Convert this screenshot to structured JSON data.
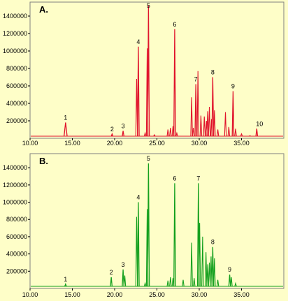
{
  "chart_data": [
    {
      "type": "line",
      "panel": "A.",
      "color": "#e0142c",
      "xlim": [
        10,
        40
      ],
      "ylim": [
        0,
        1520000
      ],
      "x_ticks": [
        "10.00",
        "15.00",
        "20.00",
        "25.00",
        "30.00",
        "35.00"
      ],
      "y_ticks": [
        "200000",
        "400000",
        "600000",
        "800000",
        "1000000",
        "1200000",
        "1400000"
      ],
      "peaks": [
        {
          "x": 14.2,
          "y": 180000,
          "label": "1"
        },
        {
          "x": 19.7,
          "y": 50000,
          "label": "2"
        },
        {
          "x": 21.0,
          "y": 85000,
          "label": "3"
        },
        {
          "x": 22.8,
          "y": 1050000,
          "label": "4"
        },
        {
          "x": 24.0,
          "y": 1520000,
          "label": "5"
        },
        {
          "x": 27.1,
          "y": 1250000,
          "label": "6"
        },
        {
          "x": 29.6,
          "y": 620000,
          "label": "7"
        },
        {
          "x": 31.6,
          "y": 700000,
          "label": "8"
        },
        {
          "x": 34.0,
          "y": 540000,
          "label": "9"
        },
        {
          "x": 36.8,
          "y": 110000,
          "label": "10"
        }
      ],
      "minor_peaks": [
        {
          "x": 22.6,
          "y": 680000
        },
        {
          "x": 23.6,
          "y": 60000
        },
        {
          "x": 23.85,
          "y": 1030000
        },
        {
          "x": 24.7,
          "y": 40000
        },
        {
          "x": 26.3,
          "y": 100000
        },
        {
          "x": 26.6,
          "y": 120000
        },
        {
          "x": 26.9,
          "y": 140000
        },
        {
          "x": 27.35,
          "y": 60000
        },
        {
          "x": 29.1,
          "y": 470000
        },
        {
          "x": 29.3,
          "y": 120000
        },
        {
          "x": 29.85,
          "y": 770000
        },
        {
          "x": 30.2,
          "y": 260000
        },
        {
          "x": 30.6,
          "y": 250000
        },
        {
          "x": 30.85,
          "y": 200000
        },
        {
          "x": 31.0,
          "y": 310000
        },
        {
          "x": 31.2,
          "y": 360000
        },
        {
          "x": 31.45,
          "y": 220000
        },
        {
          "x": 31.8,
          "y": 320000
        },
        {
          "x": 32.2,
          "y": 100000
        },
        {
          "x": 33.1,
          "y": 300000
        },
        {
          "x": 33.5,
          "y": 130000
        },
        {
          "x": 34.3,
          "y": 110000
        },
        {
          "x": 35.0,
          "y": 50000
        },
        {
          "x": 36.0,
          "y": 30000
        }
      ]
    },
    {
      "type": "line",
      "panel": "B.",
      "color": "#14a01e",
      "xlim": [
        10,
        40
      ],
      "ylim": [
        0,
        1450000
      ],
      "x_ticks": [
        "10.00",
        "15.00",
        "20.00",
        "25.00",
        "30.00",
        "35.00"
      ],
      "y_ticks": [
        "200000",
        "400000",
        "600000",
        "800000",
        "1000000",
        "1200000",
        "1400000"
      ],
      "peaks": [
        {
          "x": 14.2,
          "y": 50000,
          "label": "1"
        },
        {
          "x": 19.6,
          "y": 130000,
          "label": "2"
        },
        {
          "x": 21.0,
          "y": 220000,
          "label": "3"
        },
        {
          "x": 22.8,
          "y": 1000000,
          "label": "4"
        },
        {
          "x": 24.0,
          "y": 1450000,
          "label": "5"
        },
        {
          "x": 27.1,
          "y": 1220000,
          "label": "6"
        },
        {
          "x": 29.9,
          "y": 1220000,
          "label": "7"
        },
        {
          "x": 31.6,
          "y": 480000,
          "label": "8"
        },
        {
          "x": 33.6,
          "y": 160000,
          "label": "9"
        }
      ],
      "minor_peaks": [
        {
          "x": 21.2,
          "y": 150000
        },
        {
          "x": 22.6,
          "y": 830000
        },
        {
          "x": 23.6,
          "y": 60000
        },
        {
          "x": 23.85,
          "y": 920000
        },
        {
          "x": 26.3,
          "y": 90000
        },
        {
          "x": 26.6,
          "y": 130000
        },
        {
          "x": 26.9,
          "y": 120000
        },
        {
          "x": 28.1,
          "y": 100000
        },
        {
          "x": 29.1,
          "y": 530000
        },
        {
          "x": 29.4,
          "y": 120000
        },
        {
          "x": 30.05,
          "y": 760000
        },
        {
          "x": 30.4,
          "y": 600000
        },
        {
          "x": 30.8,
          "y": 420000
        },
        {
          "x": 31.0,
          "y": 280000
        },
        {
          "x": 31.2,
          "y": 300000
        },
        {
          "x": 31.4,
          "y": 370000
        },
        {
          "x": 31.8,
          "y": 350000
        },
        {
          "x": 32.2,
          "y": 100000
        },
        {
          "x": 33.8,
          "y": 130000
        },
        {
          "x": 34.3,
          "y": 60000
        }
      ]
    }
  ]
}
